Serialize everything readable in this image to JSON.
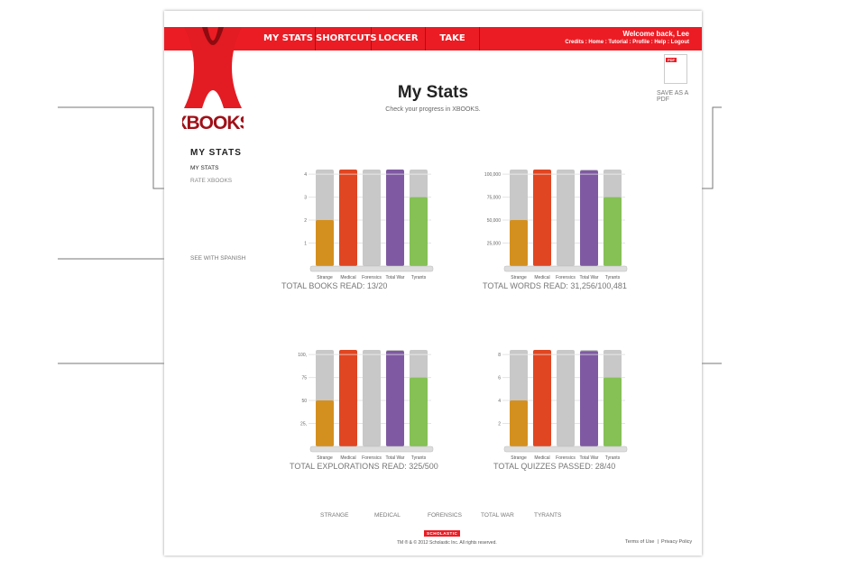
{
  "header": {
    "nav": [
      "MY STATS",
      "SHORTCUTS",
      "LOCKER",
      "TAKE NOTES"
    ],
    "welcome": "Welcome back, Lee",
    "links": [
      "Credits",
      "Home",
      "Tutorial",
      "Profile",
      "Help",
      "Logout"
    ],
    "accent": "#ec1c24"
  },
  "logo": {
    "text": "XBOOKS"
  },
  "page": {
    "title": "My Stats",
    "subtitle": "Check your progress in XBOOKS."
  },
  "pdf": {
    "badge": "PDF",
    "label": "SAVE AS A PDF",
    "icon": "pdf-document-icon"
  },
  "sidebar": {
    "heading": "MY STATS",
    "items": [
      "MY STATS",
      "RATE XBOOKS"
    ],
    "spanish": "SEE WITH SPANISH"
  },
  "colors": {
    "Strange": "#d4901f",
    "Medical": "#e04622",
    "Forensics": "#c8c8c8",
    "Total War": "#7f5aa2",
    "Tyrants": "#85c155",
    "track": "#c8c8c8"
  },
  "chart_data": [
    {
      "type": "bar",
      "title": "TOTAL BOOKS READ: 13/20",
      "categories": [
        "Strange",
        "Medical",
        "Forensics",
        "Total War",
        "Tyrants"
      ],
      "values": [
        2,
        4.2,
        0,
        4.2,
        3
      ],
      "ylim": [
        0,
        4.2
      ],
      "yticks": [
        1,
        2,
        3,
        4
      ],
      "ytick_labels": [
        "1",
        "2",
        "3",
        "4"
      ],
      "grid": true
    },
    {
      "type": "bar",
      "title": "TOTAL WORDS READ: 31,256/100,481",
      "categories": [
        "Strange",
        "Medical",
        "Forensics",
        "Total War",
        "Tyrants"
      ],
      "values": [
        50000,
        105000,
        0,
        104000,
        75000
      ],
      "ylim": [
        0,
        105000
      ],
      "yticks": [
        25000,
        50000,
        75000,
        100000
      ],
      "ytick_labels": [
        "25,000",
        "50,000",
        "75,000",
        "100,000"
      ],
      "grid": true
    },
    {
      "type": "bar",
      "title": "TOTAL EXPLORATIONS READ: 325/500",
      "categories": [
        "Strange",
        "Medical",
        "Forensics",
        "Total War",
        "Tyrants"
      ],
      "values": [
        50,
        105,
        0,
        104,
        75
      ],
      "ylim": [
        0,
        105
      ],
      "yticks": [
        25,
        50,
        75,
        100
      ],
      "ytick_labels": [
        "25,",
        "50",
        "75",
        "100,"
      ],
      "grid": true
    },
    {
      "type": "bar",
      "title": "TOTAL QUIZZES PASSED: 28/40",
      "categories": [
        "Strange",
        "Medical",
        "Forensics",
        "Total War",
        "Tyrants"
      ],
      "values": [
        4,
        8.4,
        0,
        8.3,
        6
      ],
      "ylim": [
        0,
        8.4
      ],
      "yticks": [
        2,
        4,
        6,
        8
      ],
      "ytick_labels": [
        "2",
        "4",
        "6",
        "8"
      ],
      "grid": true
    }
  ],
  "legend": [
    "STRANGE",
    "MEDICAL",
    "FORENSICS",
    "TOTAL WAR",
    "TYRANTS"
  ],
  "footer": {
    "brand": "SCHOLASTIC",
    "copyright": "TM ® & © 2012 Scholastic Inc. All rights reserved.",
    "terms": "Terms of Use",
    "privacy": "Privacy Policy"
  }
}
